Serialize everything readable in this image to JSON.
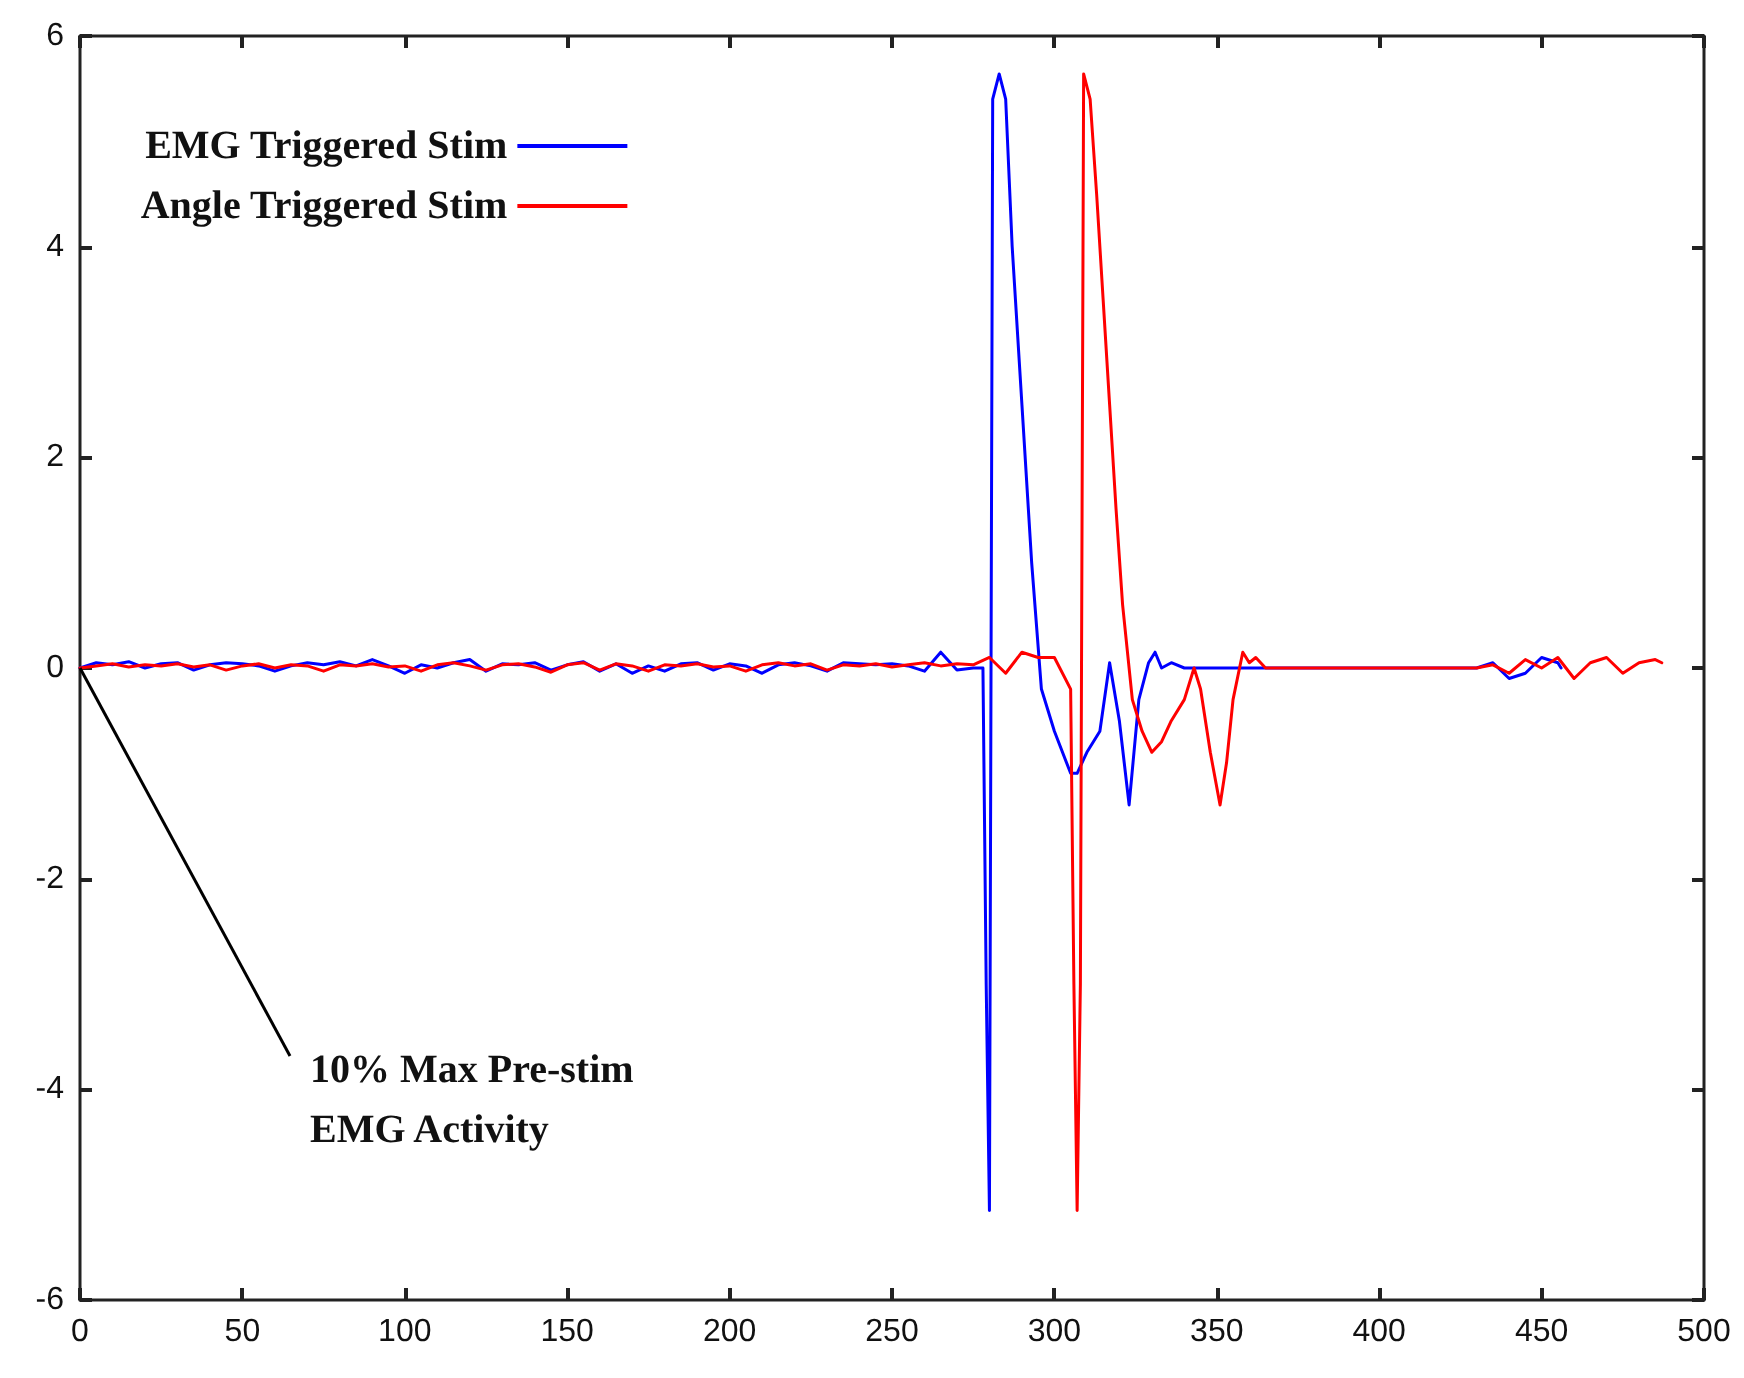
{
  "chart_data": {
    "type": "line",
    "xlim": [
      0,
      500
    ],
    "xticks": [
      0,
      50,
      100,
      150,
      200,
      250,
      300,
      350,
      400,
      450,
      500
    ],
    "ylim": [
      -6,
      6
    ],
    "yticks": [
      -6,
      -4,
      -2,
      0,
      2,
      4,
      6
    ],
    "grid": false,
    "legend": "top left",
    "marker": "none",
    "line_style": "solid",
    "annotations": [
      {
        "text": "10% Max Pre-stim\nEMG Activity",
        "x": 0,
        "y": 0
      }
    ],
    "series": [
      {
        "name": "EMG Triggered Stim",
        "color": "#0000ff",
        "x": [
          0,
          5,
          10,
          15,
          20,
          25,
          30,
          35,
          40,
          45,
          50,
          55,
          60,
          65,
          70,
          75,
          80,
          85,
          90,
          95,
          100,
          105,
          110,
          115,
          120,
          125,
          130,
          135,
          140,
          145,
          150,
          155,
          160,
          165,
          170,
          175,
          180,
          185,
          190,
          195,
          200,
          205,
          210,
          215,
          220,
          225,
          230,
          235,
          240,
          245,
          250,
          255,
          260,
          265,
          270,
          275,
          278,
          279,
          280,
          281,
          283,
          285,
          287,
          290,
          293,
          296,
          300,
          305,
          307,
          310,
          314,
          317,
          320,
          323,
          326,
          329,
          331,
          333,
          336,
          340,
          430,
          435,
          440,
          445,
          450,
          455,
          456
        ],
        "values": [
          0,
          0.05,
          0.03,
          0.06,
          0,
          0.04,
          0.05,
          -0.02,
          0.03,
          0.05,
          0.04,
          0.02,
          -0.03,
          0.02,
          0.05,
          0.03,
          0.06,
          0.02,
          0.08,
          0.02,
          -0.05,
          0.03,
          0,
          0.05,
          0.08,
          -0.03,
          0.04,
          0.03,
          0.05,
          -0.02,
          0.03,
          0.06,
          -0.03,
          0.04,
          -0.05,
          0.02,
          -0.03,
          0.04,
          0.05,
          -0.02,
          0.04,
          0.02,
          -0.05,
          0.03,
          0.05,
          0.02,
          -0.03,
          0.05,
          0.04,
          0.03,
          0.04,
          0.02,
          -0.03,
          0.15,
          -0.02,
          0,
          0,
          -3,
          -5.15,
          5.4,
          5.64,
          5.4,
          4,
          2.5,
          1,
          -0.2,
          -0.6,
          -1,
          -1,
          -0.8,
          -0.6,
          0.05,
          -0.5,
          -1.3,
          -0.3,
          0.05,
          0.15,
          0,
          0.05,
          0,
          0,
          0.05,
          -0.1,
          -0.05,
          0.1,
          0.05,
          0
        ]
      },
      {
        "name": "Angle Triggered Stim",
        "color": "#ff0000",
        "x": [
          0,
          5,
          10,
          15,
          20,
          25,
          30,
          35,
          40,
          45,
          50,
          55,
          60,
          65,
          70,
          75,
          80,
          85,
          90,
          95,
          100,
          105,
          110,
          115,
          120,
          125,
          130,
          135,
          140,
          145,
          150,
          155,
          160,
          165,
          170,
          175,
          180,
          185,
          190,
          195,
          200,
          205,
          210,
          215,
          220,
          225,
          230,
          235,
          240,
          245,
          250,
          255,
          260,
          265,
          270,
          275,
          280,
          285,
          290,
          295,
          300,
          305,
          306,
          307,
          308,
          309,
          311,
          313,
          315,
          317,
          319,
          321,
          324,
          327,
          330,
          333,
          336,
          340,
          343,
          345,
          348,
          351,
          353,
          355,
          358,
          360,
          362,
          365,
          430,
          435,
          440,
          445,
          450,
          455,
          460,
          465,
          470,
          475,
          480,
          485,
          487
        ],
        "values": [
          0,
          0.02,
          0.04,
          0.01,
          0.03,
          0.02,
          0.04,
          0.01,
          0.03,
          -0.02,
          0.02,
          0.04,
          0,
          0.03,
          0.02,
          -0.03,
          0.03,
          0.02,
          0.04,
          0.01,
          0.02,
          -0.03,
          0.03,
          0.05,
          0.02,
          -0.02,
          0.03,
          0.04,
          0.01,
          -0.04,
          0.03,
          0.05,
          -0.02,
          0.04,
          0.02,
          -0.03,
          0.03,
          0.02,
          0.04,
          0.01,
          0.02,
          -0.03,
          0.03,
          0.05,
          0.02,
          0.04,
          -0.02,
          0.03,
          0.02,
          0.04,
          0.01,
          0.03,
          0.05,
          0.02,
          0.04,
          0.03,
          0.1,
          -0.05,
          0.15,
          0.1,
          0.1,
          -0.2,
          -3,
          -5.15,
          -3,
          5.64,
          5.4,
          4.5,
          3.5,
          2.5,
          1.5,
          0.6,
          -0.3,
          -0.6,
          -0.8,
          -0.7,
          -0.5,
          -0.3,
          0,
          -0.2,
          -0.8,
          -1.3,
          -0.9,
          -0.3,
          0.15,
          0.05,
          0.1,
          0,
          0,
          0.03,
          -0.05,
          0.08,
          0,
          0.1,
          -0.1,
          0.05,
          0.1,
          -0.05,
          0.05,
          0.08,
          0.05
        ]
      }
    ]
  }
}
